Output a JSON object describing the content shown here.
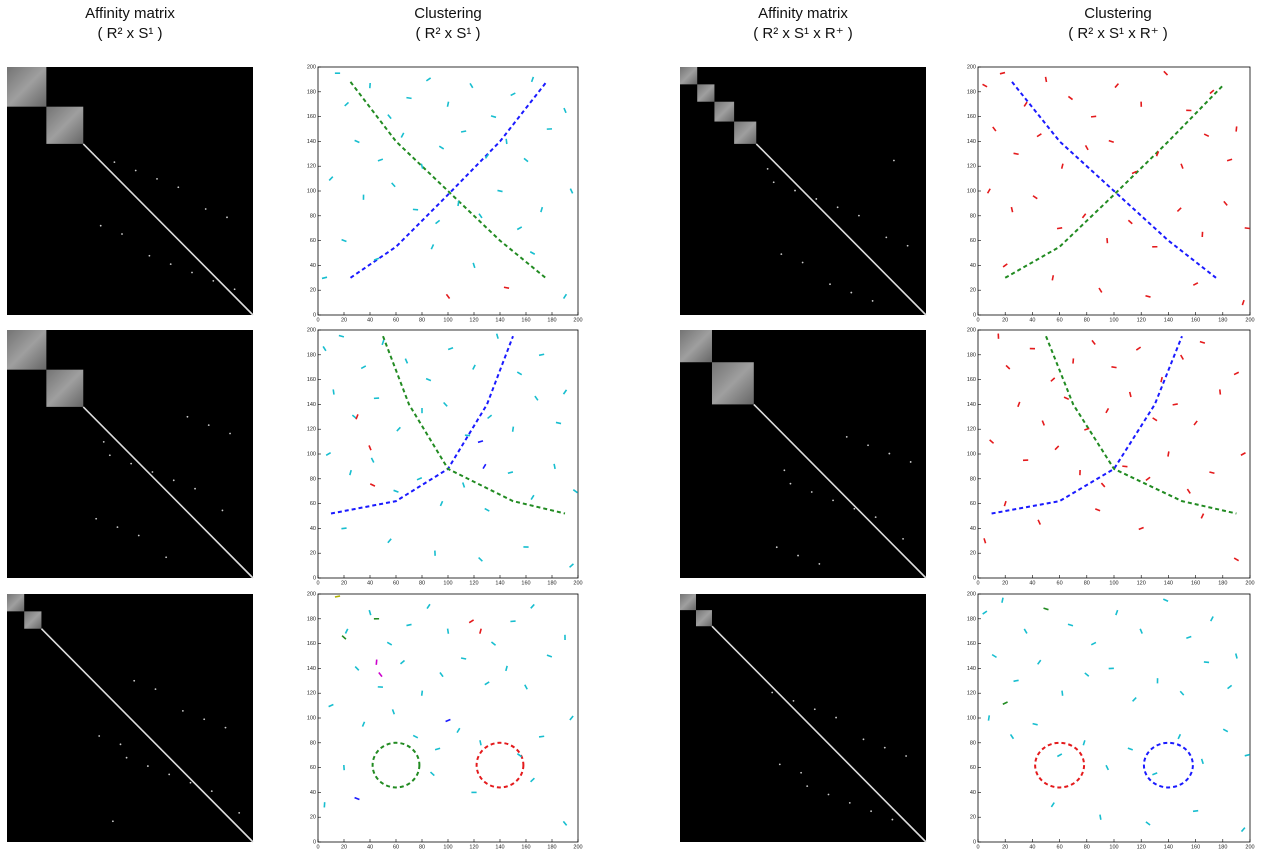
{
  "headers": [
    {
      "title": "Affinity matrix",
      "subtitle": "( R² x S¹ )"
    },
    {
      "title": "Clustering",
      "subtitle": "( R² x S¹ )"
    },
    {
      "title": "Affinity matrix",
      "subtitle": "( R² x S¹ x R⁺ )"
    },
    {
      "title": "Clustering",
      "subtitle": "( R² x S¹ x R⁺ )"
    }
  ],
  "chart_data": [
    {
      "type": "scatter",
      "xlim": [
        0,
        200
      ],
      "ylim": [
        0,
        200
      ],
      "xticks": [
        0,
        20,
        40,
        60,
        80,
        100,
        120,
        140,
        160,
        180,
        200
      ],
      "yticks": [
        0,
        20,
        40,
        60,
        80,
        100,
        120,
        140,
        160,
        180,
        200
      ],
      "series": [
        {
          "color": "#17becf",
          "x": [
            15,
            22,
            40,
            55,
            70,
            85,
            100,
            118,
            135,
            150,
            165,
            190,
            30,
            48,
            65,
            80,
            95,
            112,
            130,
            145,
            160,
            178,
            10,
            35,
            58,
            75,
            92,
            108,
            125,
            140,
            155,
            172,
            195,
            20,
            45,
            88,
            120,
            165,
            5,
            190
          ],
          "y": [
            195,
            170,
            185,
            160,
            175,
            190,
            170,
            185,
            160,
            178,
            190,
            165,
            140,
            125,
            145,
            120,
            135,
            148,
            128,
            140,
            125,
            150,
            110,
            95,
            105,
            85,
            75,
            90,
            80,
            100,
            70,
            85,
            100,
            60,
            45,
            55,
            40,
            50,
            30,
            15
          ]
        },
        {
          "color": "#e41a1c",
          "x": [
            100,
            145
          ],
          "y": [
            15,
            22
          ]
        }
      ],
      "curves": [
        {
          "color": "#228b22",
          "x": [
            25,
            60,
            100,
            140,
            175
          ],
          "y": [
            188,
            140,
            100,
            60,
            30
          ]
        },
        {
          "color": "#1a1aff",
          "x": [
            25,
            60,
            100,
            140,
            175
          ],
          "y": [
            30,
            55,
            97,
            140,
            187
          ]
        }
      ]
    },
    {
      "type": "scatter",
      "xlim": [
        0,
        200
      ],
      "ylim": [
        0,
        200
      ],
      "xticks": [
        0,
        20,
        40,
        60,
        80,
        100,
        120,
        140,
        160,
        180,
        200
      ],
      "yticks": [
        0,
        20,
        40,
        60,
        80,
        100,
        120,
        140,
        160,
        180,
        200
      ],
      "series": [
        {
          "color": "#e41a1c",
          "x": [
            5,
            18,
            35,
            50,
            68,
            85,
            102,
            120,
            138,
            155,
            172,
            190,
            12,
            28,
            45,
            62,
            80,
            98,
            115,
            132,
            150,
            168,
            185,
            8,
            25,
            42,
            60,
            78,
            95,
            112,
            130,
            148,
            165,
            182,
            198,
            20,
            55,
            90,
            125,
            160,
            195
          ],
          "y": [
            185,
            195,
            170,
            190,
            175,
            160,
            185,
            170,
            195,
            165,
            180,
            150,
            150,
            130,
            145,
            120,
            135,
            140,
            115,
            130,
            120,
            145,
            125,
            100,
            85,
            95,
            70,
            80,
            60,
            75,
            55,
            85,
            65,
            90,
            70,
            40,
            30,
            20,
            15,
            25,
            10
          ]
        }
      ],
      "curves": [
        {
          "color": "#228b22",
          "x": [
            20,
            60,
            100,
            140,
            180
          ],
          "y": [
            30,
            55,
            97,
            140,
            185
          ]
        },
        {
          "color": "#1a1aff",
          "x": [
            25,
            60,
            100,
            140,
            175
          ],
          "y": [
            188,
            140,
            100,
            60,
            30
          ]
        }
      ]
    },
    {
      "type": "scatter",
      "xlim": [
        0,
        200
      ],
      "ylim": [
        0,
        200
      ],
      "xticks": [
        0,
        20,
        40,
        60,
        80,
        100,
        120,
        140,
        160,
        180,
        200
      ],
      "yticks": [
        0,
        20,
        40,
        60,
        80,
        100,
        120,
        140,
        160,
        180,
        200
      ],
      "series": [
        {
          "color": "#17becf",
          "x": [
            5,
            18,
            35,
            50,
            68,
            85,
            102,
            120,
            138,
            155,
            172,
            190,
            12,
            28,
            45,
            62,
            80,
            98,
            115,
            132,
            150,
            168,
            185,
            8,
            25,
            42,
            60,
            78,
            95,
            112,
            130,
            148,
            165,
            182,
            198,
            20,
            55,
            90,
            125,
            160,
            195
          ],
          "y": [
            185,
            195,
            170,
            190,
            175,
            160,
            185,
            170,
            195,
            165,
            180,
            150,
            150,
            130,
            145,
            120,
            135,
            140,
            115,
            130,
            120,
            145,
            125,
            100,
            85,
            95,
            70,
            80,
            60,
            75,
            55,
            85,
            65,
            90,
            70,
            40,
            30,
            20,
            15,
            25,
            10
          ]
        },
        {
          "color": "#e41a1c",
          "x": [
            30,
            40,
            42
          ],
          "y": [
            130,
            105,
            75
          ]
        },
        {
          "color": "#1a1aff",
          "x": [
            125,
            128
          ],
          "y": [
            110,
            90
          ]
        }
      ],
      "curves": [
        {
          "color": "#1a1aff",
          "x": [
            10,
            60,
            100,
            130,
            150
          ],
          "y": [
            52,
            62,
            88,
            140,
            195
          ]
        },
        {
          "color": "#228b22",
          "x": [
            50,
            70,
            100,
            150,
            190
          ],
          "y": [
            195,
            140,
            88,
            62,
            52
          ]
        }
      ]
    },
    {
      "type": "scatter",
      "xlim": [
        0,
        200
      ],
      "ylim": [
        0,
        200
      ],
      "xticks": [
        0,
        20,
        40,
        60,
        80,
        100,
        120,
        140,
        160,
        180,
        200
      ],
      "yticks": [
        0,
        20,
        40,
        60,
        80,
        100,
        120,
        140,
        160,
        180,
        200
      ],
      "series": [
        {
          "color": "#e41a1c",
          "x": [
            15,
            22,
            40,
            55,
            70,
            85,
            100,
            118,
            135,
            150,
            165,
            190,
            30,
            48,
            65,
            80,
            95,
            112,
            130,
            145,
            160,
            178,
            10,
            35,
            58,
            75,
            92,
            108,
            125,
            140,
            155,
            172,
            195,
            20,
            45,
            88,
            120,
            165,
            5,
            190
          ],
          "y": [
            195,
            170,
            185,
            160,
            175,
            190,
            170,
            185,
            160,
            178,
            190,
            165,
            140,
            125,
            145,
            120,
            135,
            148,
            128,
            140,
            125,
            150,
            110,
            95,
            105,
            85,
            75,
            90,
            80,
            100,
            70,
            85,
            100,
            60,
            45,
            55,
            40,
            50,
            30,
            15
          ]
        }
      ],
      "curves": [
        {
          "color": "#1a1aff",
          "x": [
            10,
            60,
            100,
            130,
            150
          ],
          "y": [
            52,
            62,
            88,
            140,
            195
          ]
        },
        {
          "color": "#228b22",
          "x": [
            50,
            70,
            100,
            150,
            190
          ],
          "y": [
            195,
            140,
            88,
            62,
            52
          ]
        }
      ]
    },
    {
      "type": "scatter",
      "xlim": [
        0,
        200
      ],
      "ylim": [
        0,
        200
      ],
      "xticks": [
        0,
        20,
        40,
        60,
        80,
        100,
        120,
        140,
        160,
        180,
        200
      ],
      "yticks": [
        0,
        20,
        40,
        60,
        80,
        100,
        120,
        140,
        160,
        180,
        200
      ],
      "series": [
        {
          "color": "#17becf",
          "x": [
            22,
            40,
            55,
            70,
            85,
            100,
            135,
            150,
            165,
            190,
            30,
            48,
            65,
            80,
            95,
            112,
            130,
            145,
            160,
            178,
            10,
            35,
            58,
            75,
            92,
            108,
            125,
            155,
            172,
            195,
            20,
            88,
            120,
            165,
            5,
            190
          ],
          "y": [
            170,
            185,
            160,
            175,
            190,
            170,
            160,
            178,
            190,
            165,
            140,
            125,
            145,
            120,
            135,
            148,
            128,
            140,
            125,
            150,
            110,
            95,
            105,
            85,
            75,
            90,
            80,
            70,
            85,
            100,
            60,
            55,
            40,
            50,
            30,
            15
          ]
        },
        {
          "color": "#b0b000",
          "x": [
            15
          ],
          "y": [
            198
          ]
        },
        {
          "color": "#228b22",
          "x": [
            20,
            45
          ],
          "y": [
            165,
            180
          ]
        },
        {
          "color": "#cc00cc",
          "x": [
            45,
            48
          ],
          "y": [
            145,
            135
          ]
        },
        {
          "color": "#e41a1c",
          "x": [
            118,
            125
          ],
          "y": [
            178,
            170
          ]
        },
        {
          "color": "#1a1aff",
          "x": [
            30,
            100
          ],
          "y": [
            35,
            98
          ]
        }
      ],
      "circles": [
        {
          "color": "#228b22",
          "cx": 60,
          "cy": 62,
          "r": 18
        },
        {
          "color": "#e41a1c",
          "cx": 140,
          "cy": 62,
          "r": 18
        }
      ]
    },
    {
      "type": "scatter",
      "xlim": [
        0,
        200
      ],
      "ylim": [
        0,
        200
      ],
      "xticks": [
        0,
        20,
        40,
        60,
        80,
        100,
        120,
        140,
        160,
        180,
        200
      ],
      "yticks": [
        0,
        20,
        40,
        60,
        80,
        100,
        120,
        140,
        160,
        180,
        200
      ],
      "series": [
        {
          "color": "#17becf",
          "x": [
            5,
            18,
            35,
            68,
            85,
            102,
            120,
            138,
            155,
            172,
            190,
            12,
            28,
            45,
            62,
            80,
            98,
            115,
            132,
            150,
            168,
            185,
            8,
            25,
            42,
            60,
            78,
            95,
            112,
            130,
            148,
            165,
            182,
            198,
            55,
            90,
            125,
            160,
            195
          ],
          "y": [
            185,
            195,
            170,
            175,
            160,
            185,
            170,
            195,
            165,
            180,
            150,
            150,
            130,
            145,
            120,
            135,
            140,
            115,
            130,
            120,
            145,
            125,
            100,
            85,
            95,
            70,
            80,
            60,
            75,
            55,
            85,
            65,
            90,
            70,
            30,
            20,
            15,
            25,
            10
          ]
        },
        {
          "color": "#228b22",
          "x": [
            50,
            20
          ],
          "y": [
            188,
            112
          ]
        }
      ],
      "circles": [
        {
          "color": "#e41a1c",
          "cx": 60,
          "cy": 62,
          "r": 18
        },
        {
          "color": "#1a1aff",
          "cx": 140,
          "cy": 62,
          "r": 18
        }
      ]
    }
  ]
}
